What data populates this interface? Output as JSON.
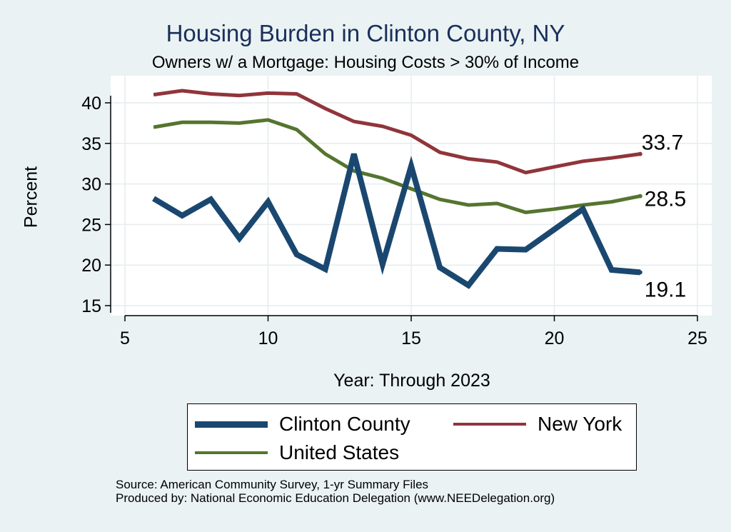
{
  "chart_data": {
    "type": "line",
    "title": "Housing Burden in Clinton County, NY",
    "subtitle": "Owners w/ a Mortgage: Housing Costs > 30% of Income",
    "xlabel": "Year: Through 2023",
    "ylabel": "Percent",
    "xlim": [
      5,
      25
    ],
    "ylim": [
      15,
      42
    ],
    "xticks": [
      5,
      10,
      15,
      20,
      25
    ],
    "yticks": [
      15,
      20,
      25,
      30,
      35,
      40
    ],
    "grid": true,
    "x": [
      6,
      7,
      8,
      9,
      10,
      11,
      12,
      13,
      14,
      15,
      16,
      17,
      18,
      19,
      20,
      21,
      22,
      23
    ],
    "series": [
      {
        "name": "Clinton County",
        "color": "#1a476f",
        "values": [
          28.2,
          26.1,
          28.1,
          23.3,
          27.8,
          21.3,
          19.5,
          33.7,
          20.1,
          32.2,
          19.7,
          17.5,
          22.0,
          21.9,
          24.4,
          26.9,
          19.4,
          19.1
        ],
        "end_label": "19.1"
      },
      {
        "name": "New York",
        "color": "#90353b",
        "values": [
          41.0,
          41.5,
          41.1,
          40.9,
          41.2,
          41.1,
          39.3,
          37.7,
          37.1,
          36.0,
          33.9,
          33.1,
          32.7,
          31.4,
          32.1,
          32.8,
          33.2,
          33.7
        ],
        "end_label": "33.7"
      },
      {
        "name": "United States",
        "color": "#55752f",
        "values": [
          37.0,
          37.6,
          37.6,
          37.5,
          37.9,
          36.7,
          33.7,
          31.6,
          30.7,
          29.4,
          28.1,
          27.4,
          27.6,
          26.5,
          26.9,
          27.4,
          27.8,
          28.5
        ],
        "end_label": "28.5"
      }
    ]
  },
  "legend": {
    "items": [
      "Clinton County",
      "New York",
      "United States"
    ]
  },
  "source": {
    "line1": "Source: American Community Survey, 1-yr Summary Files",
    "line2": "Produced by: National Economic Education Delegation (www.NEEDelegation.org)"
  }
}
